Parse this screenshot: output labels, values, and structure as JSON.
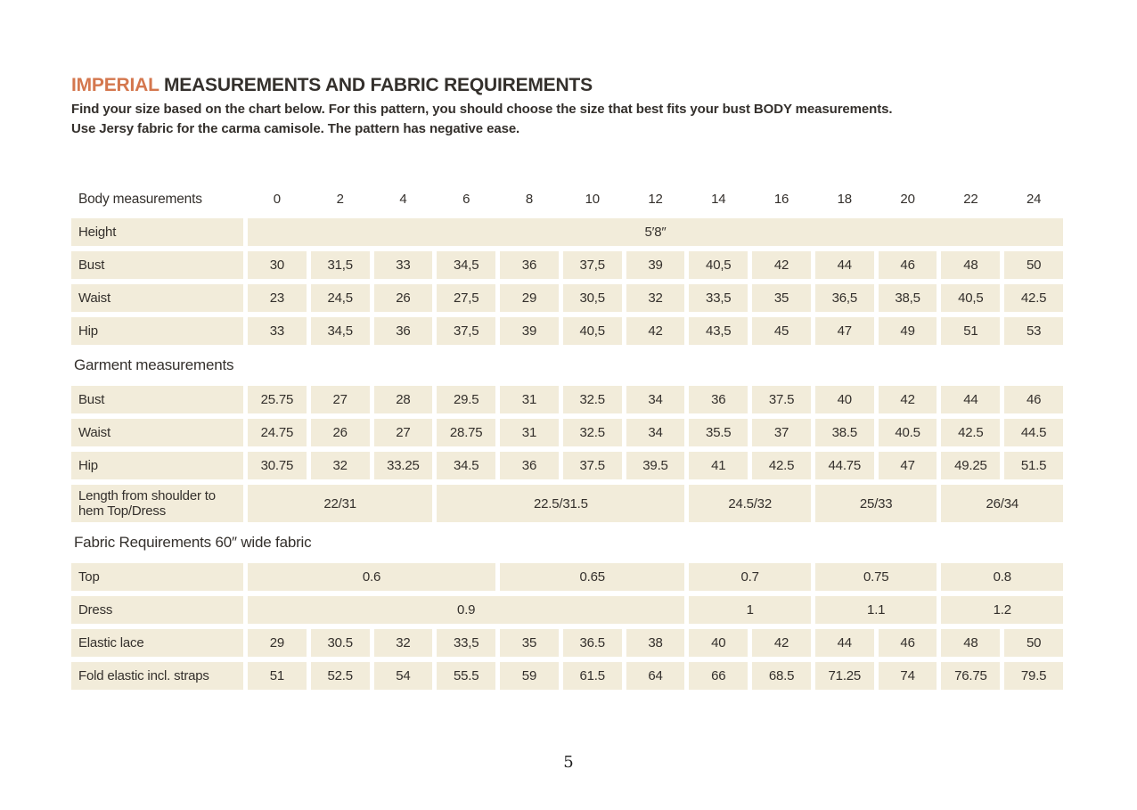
{
  "page": {
    "title_accent": "IMPERIAL",
    "title_rest": " MEASUREMENTS AND FABRIC REQUIREMENTS",
    "intro_line1": "Find your size based on the chart below. For this pattern, you should choose the size that best fits your bust BODY measurements.",
    "intro_line2": "Use Jersy fabric for the carma camisole. The pattern has negative ease.",
    "page_number": "5"
  },
  "colors": {
    "accent_orange": "#d4774e",
    "cell_beige": "#f2ecda",
    "text_dark": "#34302c"
  },
  "table": {
    "rows": [
      {
        "kind": "header",
        "label": "Body measurements",
        "cells": [
          "0",
          "2",
          "4",
          "6",
          "8",
          "10",
          "12",
          "14",
          "16",
          "18",
          "20",
          "22",
          "24"
        ]
      },
      {
        "kind": "row",
        "label": "Height",
        "cells": [
          {
            "v": "5′8″",
            "span": 13
          }
        ]
      },
      {
        "kind": "row",
        "label": "Bust",
        "cells": [
          "30",
          "31,5",
          "33",
          "34,5",
          "36",
          "37,5",
          "39",
          "40,5",
          "42",
          "44",
          "46",
          "48",
          "50"
        ]
      },
      {
        "kind": "row",
        "label": "Waist",
        "cells": [
          "23",
          "24,5",
          "26",
          "27,5",
          "29",
          "30,5",
          "32",
          "33,5",
          "35",
          "36,5",
          "38,5",
          "40,5",
          "42.5"
        ]
      },
      {
        "kind": "row",
        "label": "Hip",
        "cells": [
          "33",
          "34,5",
          "36",
          "37,5",
          "39",
          "40,5",
          "42",
          "43,5",
          "45",
          "47",
          "49",
          "51",
          "53"
        ]
      },
      {
        "kind": "section",
        "label": "Garment measurements"
      },
      {
        "kind": "row",
        "label": "Bust",
        "cells": [
          "25.75",
          "27",
          "28",
          "29.5",
          "31",
          "32.5",
          "34",
          "36",
          "37.5",
          "40",
          "42",
          "44",
          "46"
        ]
      },
      {
        "kind": "row",
        "label": "Waist",
        "cells": [
          "24.75",
          "26",
          "27",
          "28.75",
          "31",
          "32.5",
          "34",
          "35.5",
          "37",
          "38.5",
          "40.5",
          "42.5",
          "44.5"
        ]
      },
      {
        "kind": "row",
        "label": "Hip",
        "cells": [
          "30.75",
          "32",
          "33.25",
          "34.5",
          "36",
          "37.5",
          "39.5",
          "41",
          "42.5",
          "44.75",
          "47",
          "49.25",
          "51.5"
        ]
      },
      {
        "kind": "row",
        "label": "Length from shoulder to hem Top/Dress",
        "tall": true,
        "cells": [
          {
            "v": "22/31",
            "span": 3
          },
          {
            "v": "22.5/31.5",
            "span": 4
          },
          {
            "v": "24.5/32",
            "span": 2
          },
          {
            "v": "25/33",
            "span": 2
          },
          {
            "v": "26/34",
            "span": 2
          }
        ]
      },
      {
        "kind": "section",
        "label": "Fabric Requirements 60″ wide fabric"
      },
      {
        "kind": "row",
        "label": "Top",
        "cells": [
          {
            "v": "0.6",
            "span": 4
          },
          {
            "v": "0.65",
            "span": 3
          },
          {
            "v": "0.7",
            "span": 2
          },
          {
            "v": "0.75",
            "span": 2
          },
          {
            "v": "0.8",
            "span": 2
          }
        ]
      },
      {
        "kind": "row",
        "label": "Dress",
        "cells": [
          {
            "v": "0.9",
            "span": 7
          },
          {
            "v": "1",
            "span": 2
          },
          {
            "v": "1.1",
            "span": 2
          },
          {
            "v": "1.2",
            "span": 2
          }
        ]
      },
      {
        "kind": "row",
        "label": "Elastic lace",
        "cells": [
          "29",
          "30.5",
          "32",
          "33,5",
          "35",
          "36.5",
          "38",
          "40",
          "42",
          "44",
          "46",
          "48",
          "50"
        ]
      },
      {
        "kind": "row",
        "label": "Fold elastic incl. straps",
        "cells": [
          "51",
          "52.5",
          "54",
          "55.5",
          "59",
          "61.5",
          "64",
          "66",
          "68.5",
          "71.25",
          "74",
          "76.75",
          "79.5"
        ]
      }
    ]
  }
}
